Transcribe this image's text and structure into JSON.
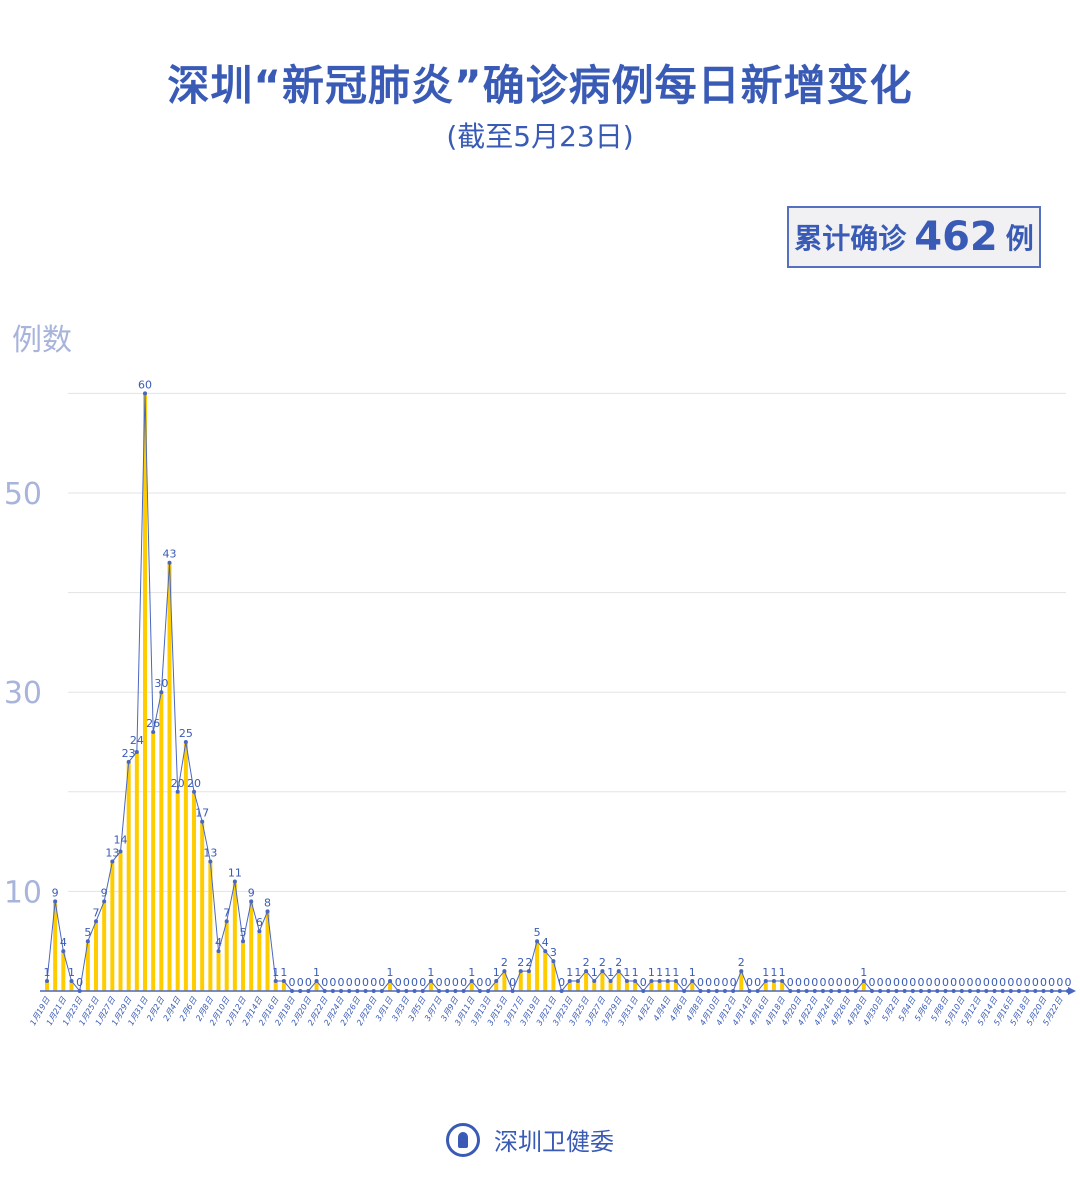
{
  "header": {
    "title": "深圳“新冠肺炎”确诊病例每日新增变化",
    "subtitle": "(截至5月23日)"
  },
  "summary": {
    "label": "累计确诊",
    "total": "462",
    "unit": "例"
  },
  "footer": {
    "org": "深圳卫健委"
  },
  "colors": {
    "bar": "#FFCC00",
    "line": "#4A67C0",
    "text": "#3A5BB5",
    "axis_label": "#A8B4DC",
    "grid": "#E3E3E3"
  },
  "chart_data": {
    "type": "bar+line",
    "ylabel": "例数",
    "y_ticks": [
      10,
      30,
      50
    ],
    "gridlines": [
      10,
      20,
      30,
      40,
      50,
      60
    ],
    "ylim": [
      0,
      60
    ],
    "grid": true,
    "x_tick_labels": [
      "1月19日",
      "1月21日",
      "1月23日",
      "1月25日",
      "1月27日",
      "1月29日",
      "1月31日",
      "2月2日",
      "2月4日",
      "2月6日",
      "2月8日",
      "2月10日",
      "2月12日",
      "2月14日",
      "2月16日",
      "2月18日",
      "2月20日",
      "2月22日",
      "2月24日",
      "2月26日",
      "2月28日",
      "3月1日",
      "3月3日",
      "3月5日",
      "3月7日",
      "3月9日",
      "3月11日",
      "3月13日",
      "3月15日",
      "3月17日",
      "3月19日",
      "3月21日",
      "3月23日",
      "3月25日",
      "3月27日",
      "3月29日",
      "3月31日",
      "4月2日",
      "4月4日",
      "4月6日",
      "4月8日",
      "4月10日",
      "4月12日",
      "4月14日",
      "4月16日",
      "4月18日",
      "4月20日",
      "4月22日",
      "4月24日",
      "4月26日",
      "4月28日",
      "4月30日",
      "5月2日",
      "5月4日",
      "5月6日",
      "5月8日",
      "5月10日",
      "5月12日",
      "5月14日",
      "5月16日",
      "5月18日",
      "5月20日",
      "5月22日"
    ],
    "values": [
      1,
      9,
      4,
      1,
      0,
      5,
      7,
      9,
      13,
      14,
      23,
      24,
      60,
      26,
      30,
      43,
      20,
      25,
      20,
      17,
      13,
      4,
      7,
      11,
      5,
      9,
      6,
      8,
      1,
      1,
      0,
      0,
      0,
      1,
      0,
      0,
      0,
      0,
      0,
      0,
      0,
      0,
      1,
      0,
      0,
      0,
      0,
      1,
      0,
      0,
      0,
      0,
      1,
      0,
      0,
      1,
      2,
      0,
      2,
      2,
      5,
      4,
      3,
      0,
      1,
      1,
      2,
      1,
      2,
      1,
      2,
      1,
      1,
      0,
      1,
      1,
      1,
      1,
      0,
      1,
      0,
      0,
      0,
      0,
      0,
      2,
      0,
      0,
      1,
      1,
      1,
      0,
      0,
      0,
      0,
      0,
      0,
      0,
      0,
      0,
      1,
      0,
      0,
      0,
      0,
      0,
      0,
      0,
      0,
      0,
      0,
      0,
      0,
      0,
      0,
      0,
      0,
      0,
      0,
      0,
      0,
      0,
      0,
      0,
      0,
      0
    ]
  }
}
